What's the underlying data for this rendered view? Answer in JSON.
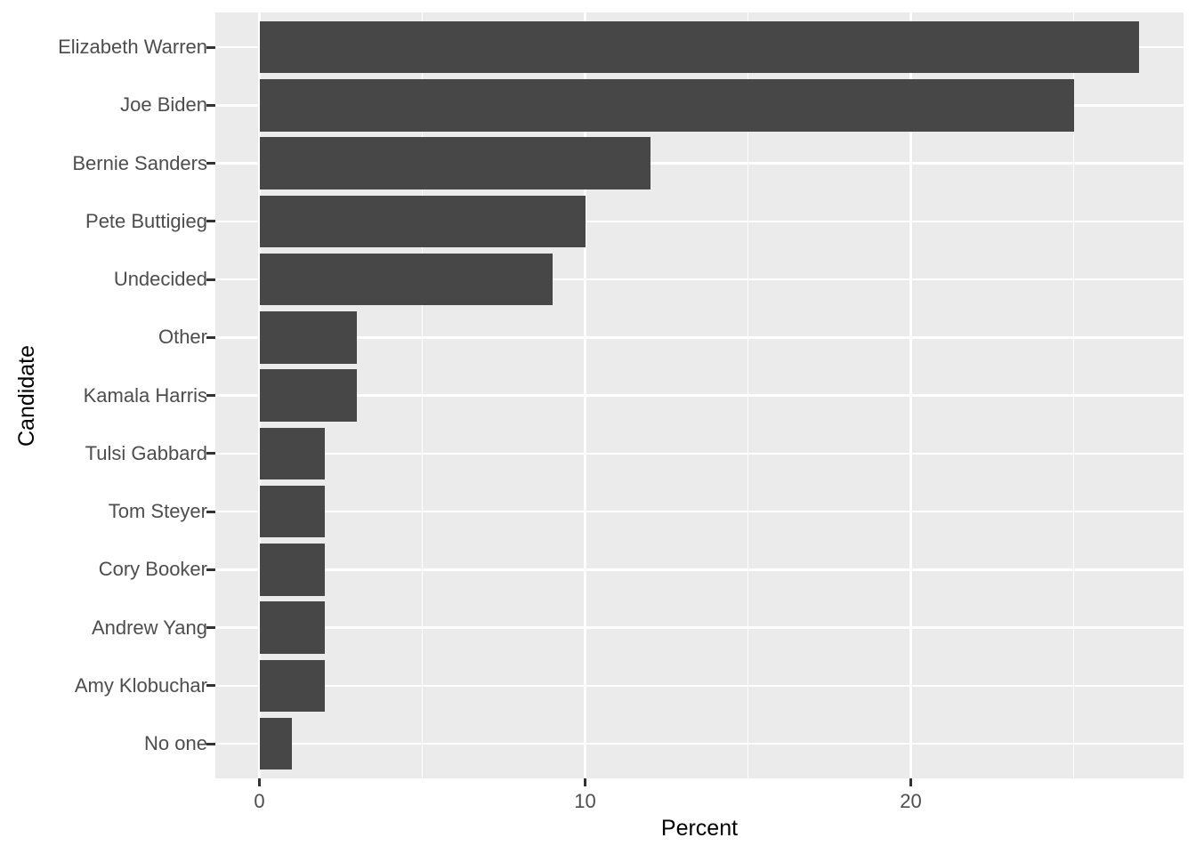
{
  "figure": {
    "background_color": "#ffffff",
    "panel_background_color": "#ebebeb",
    "grid_color": "#ffffff",
    "bar_color": "#474747",
    "axis_text_color": "#4d4d4d",
    "axis_title_color": "#000000",
    "tick_mark_color": "#333333"
  },
  "chart_data": {
    "type": "bar",
    "orientation": "horizontal",
    "title": "",
    "xlabel": "Percent",
    "ylabel": "Candidate",
    "categories": [
      "Elizabeth Warren",
      "Joe Biden",
      "Bernie Sanders",
      "Pete Buttigieg",
      "Undecided",
      "Other",
      "Kamala Harris",
      "Tulsi Gabbard",
      "Tom Steyer",
      "Cory Booker",
      "Andrew Yang",
      "Amy Klobuchar",
      "No one"
    ],
    "values": [
      27,
      25,
      12,
      10,
      9,
      3,
      3,
      2,
      2,
      2,
      2,
      2,
      1
    ],
    "x_major_ticks": [
      0,
      10,
      20
    ],
    "x_minor_ticks": [
      5,
      15,
      25
    ],
    "xlim": [
      -1.35,
      28.4
    ],
    "ylim_categories": "No one (bottom) to Elizabeth Warren (top)",
    "grid": "white major gridlines at category centers and x major ticks; white minor x gridlines",
    "legend": "none"
  }
}
